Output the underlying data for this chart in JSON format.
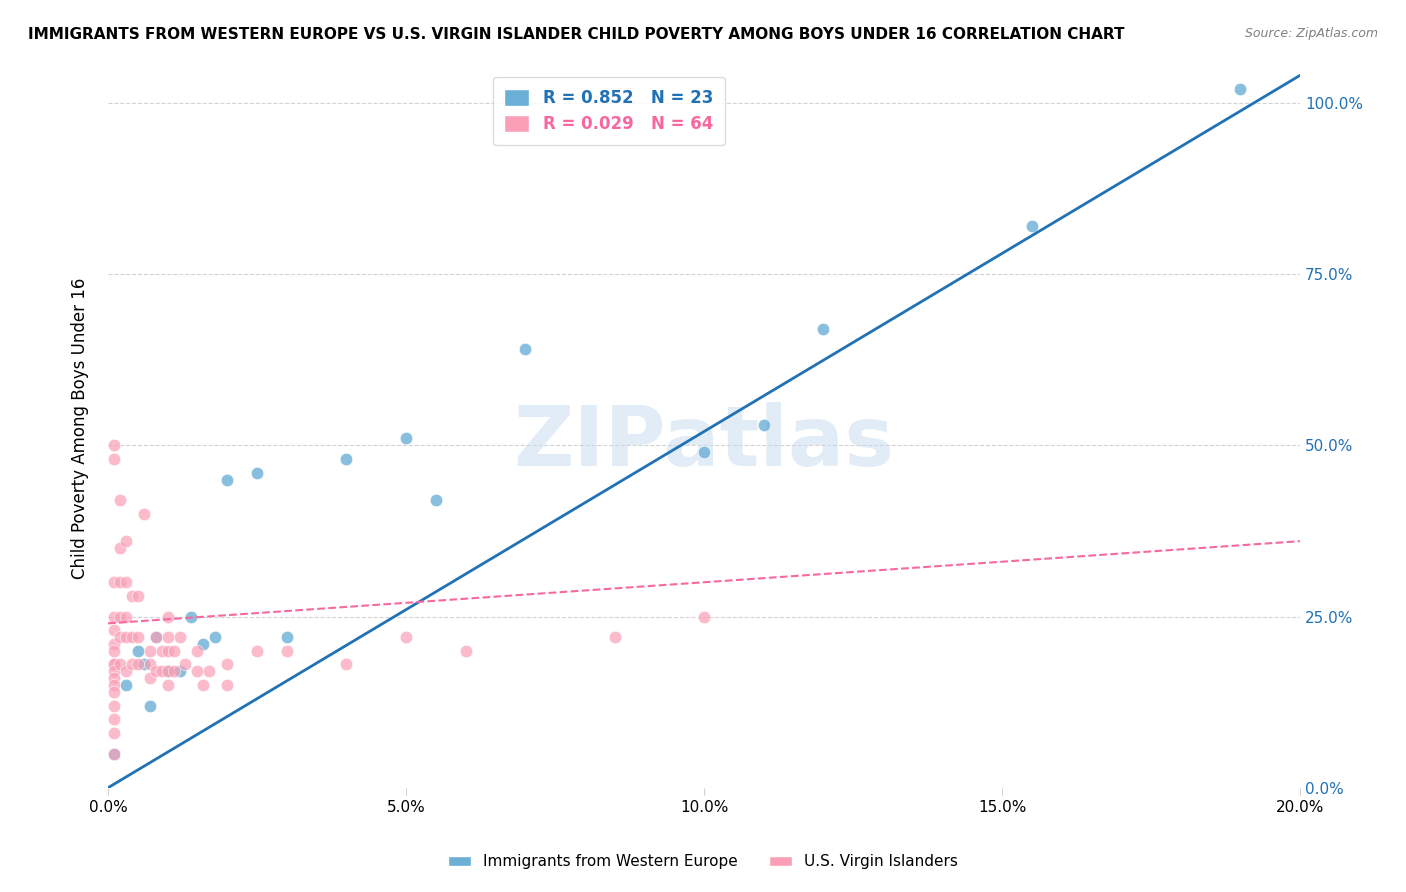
{
  "title": "IMMIGRANTS FROM WESTERN EUROPE VS U.S. VIRGIN ISLANDER CHILD POVERTY AMONG BOYS UNDER 16 CORRELATION CHART",
  "source": "Source: ZipAtlas.com",
  "ylabel": "Child Poverty Among Boys Under 16",
  "xlabel_ticks": [
    "0.0%",
    "5.0%",
    "10.0%",
    "15.0%",
    "20.0%"
  ],
  "ylabel_ticks_right": [
    "0.0%",
    "25.0%",
    "50.0%",
    "75.0%",
    "100.0%"
  ],
  "xlim": [
    0.0,
    0.2
  ],
  "ylim": [
    0.0,
    1.05
  ],
  "blue_R": 0.852,
  "blue_N": 23,
  "pink_R": 0.029,
  "pink_N": 64,
  "blue_color": "#6baed6",
  "pink_color": "#fa9fb5",
  "blue_line_color": "#2171b5",
  "pink_line_color": "#f768a1",
  "watermark": "ZIPatlas",
  "watermark_color": "#c6dbef",
  "blue_scatter_x": [
    0.001,
    0.003,
    0.005,
    0.006,
    0.007,
    0.008,
    0.01,
    0.012,
    0.014,
    0.016,
    0.018,
    0.02,
    0.025,
    0.03,
    0.04,
    0.05,
    0.055,
    0.07,
    0.1,
    0.11,
    0.12,
    0.155,
    0.19
  ],
  "blue_scatter_y": [
    0.05,
    0.15,
    0.2,
    0.18,
    0.12,
    0.22,
    0.17,
    0.17,
    0.25,
    0.21,
    0.22,
    0.45,
    0.46,
    0.22,
    0.48,
    0.51,
    0.42,
    0.64,
    0.49,
    0.53,
    0.67,
    0.82,
    1.02
  ],
  "pink_scatter_x": [
    0.001,
    0.001,
    0.001,
    0.001,
    0.001,
    0.001,
    0.001,
    0.001,
    0.001,
    0.001,
    0.001,
    0.001,
    0.001,
    0.001,
    0.001,
    0.001,
    0.001,
    0.002,
    0.002,
    0.002,
    0.002,
    0.002,
    0.002,
    0.003,
    0.003,
    0.003,
    0.003,
    0.003,
    0.004,
    0.004,
    0.004,
    0.005,
    0.005,
    0.005,
    0.006,
    0.007,
    0.007,
    0.007,
    0.008,
    0.008,
    0.009,
    0.009,
    0.01,
    0.01,
    0.01,
    0.01,
    0.01,
    0.011,
    0.011,
    0.012,
    0.013,
    0.015,
    0.015,
    0.016,
    0.017,
    0.02,
    0.02,
    0.025,
    0.03,
    0.04,
    0.05,
    0.06,
    0.085,
    0.1
  ],
  "pink_scatter_y": [
    0.48,
    0.5,
    0.3,
    0.25,
    0.23,
    0.21,
    0.2,
    0.18,
    0.18,
    0.17,
    0.16,
    0.15,
    0.14,
    0.12,
    0.1,
    0.08,
    0.05,
    0.42,
    0.35,
    0.3,
    0.25,
    0.22,
    0.18,
    0.36,
    0.3,
    0.25,
    0.22,
    0.17,
    0.28,
    0.22,
    0.18,
    0.28,
    0.22,
    0.18,
    0.4,
    0.2,
    0.18,
    0.16,
    0.22,
    0.17,
    0.2,
    0.17,
    0.25,
    0.22,
    0.2,
    0.17,
    0.15,
    0.2,
    0.17,
    0.22,
    0.18,
    0.2,
    0.17,
    0.15,
    0.17,
    0.18,
    0.15,
    0.2,
    0.2,
    0.18,
    0.22,
    0.2,
    0.22,
    0.25
  ],
  "blue_line_x": [
    0.0,
    0.2
  ],
  "blue_line_y": [
    0.0,
    1.04
  ],
  "pink_line_x": [
    0.0,
    0.2
  ],
  "pink_line_y": [
    0.24,
    0.36
  ]
}
